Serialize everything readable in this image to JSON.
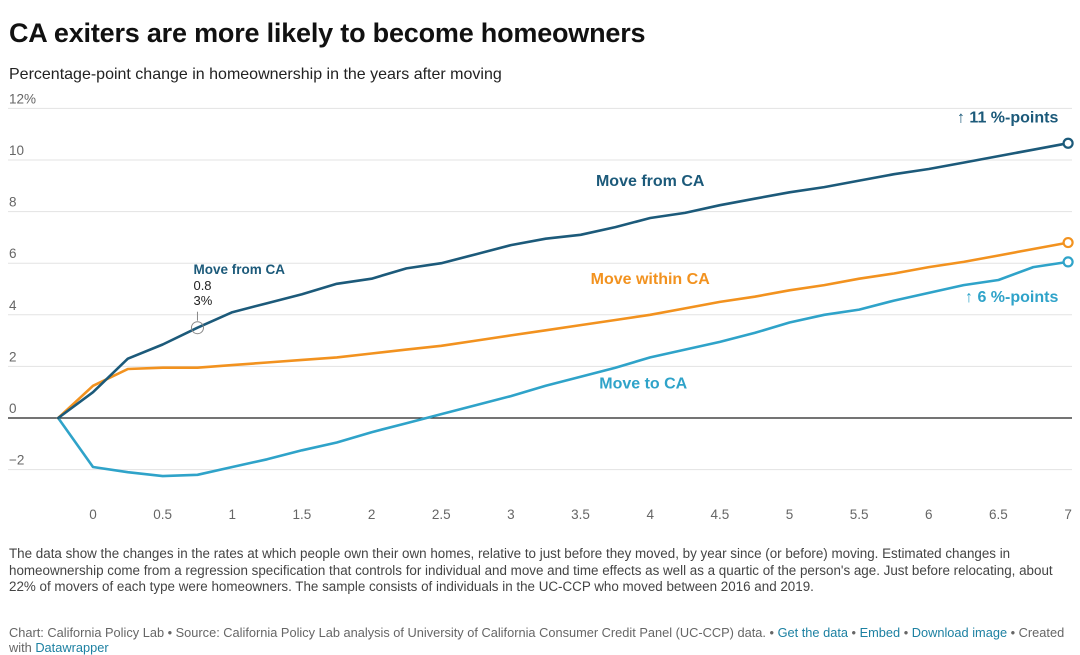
{
  "title": "CA exiters are more likely to become homeowners",
  "subtitle": "Percentage-point change in homeownership in the years after moving",
  "notes": "The data show the changes in the rates at which people own their own homes, relative to just before they moved, by year since (or before) moving. Estimated changes in homeownership come from a regression specification that controls for individual and move and time effects as well as a quartic of the person's age. Just before relocating, about 22% of movers of each type were homeowners. The sample consists of individuals in the UC-CCP who moved between 2016 and 2019.",
  "footer": {
    "source": "Chart: California Policy Lab • Source: California Policy Lab analysis of University of California Consumer Credit Panel (UC-CCP) data. • ",
    "get_data": "Get the data",
    "sep1": " • ",
    "embed": "Embed",
    "sep2": " • ",
    "download": "Download image",
    "sep3": " • Created with ",
    "datawrapper": "Datawrapper"
  },
  "chart_data": {
    "type": "line",
    "x_ticks": [
      "0",
      "0.5",
      "1",
      "1.5",
      "2",
      "2.5",
      "3",
      "3.5",
      "4",
      "4.5",
      "5",
      "5.5",
      "6",
      "6.5",
      "7"
    ],
    "y_ticks": [
      "12%",
      "10",
      "8",
      "6",
      "4",
      "2",
      "0",
      "−2"
    ],
    "xlim": [
      -0.25,
      7
    ],
    "ylim": [
      -2.5,
      12
    ],
    "colors": {
      "from": "#1c5a7a",
      "within": "#f2921f",
      "to": "#2fa3c9"
    },
    "series": [
      {
        "name": "Move from CA",
        "x": [
          -0.25,
          0,
          0.25,
          0.5,
          0.75,
          1,
          1.25,
          1.5,
          1.75,
          2,
          2.25,
          2.5,
          2.75,
          3,
          3.25,
          3.5,
          3.75,
          4,
          4.25,
          4.5,
          4.75,
          5,
          5.25,
          5.5,
          5.75,
          6,
          6.25,
          6.5,
          6.75,
          7
        ],
        "values": [
          0,
          1.0,
          2.3,
          2.85,
          3.5,
          4.1,
          4.45,
          4.8,
          5.2,
          5.4,
          5.8,
          6.0,
          6.35,
          6.7,
          6.95,
          7.1,
          7.4,
          7.75,
          7.95,
          8.25,
          8.5,
          8.75,
          8.95,
          9.2,
          9.45,
          9.65,
          9.9,
          10.15,
          10.4,
          10.65
        ]
      },
      {
        "name": "Move within CA",
        "x": [
          -0.25,
          0,
          0.25,
          0.5,
          0.75,
          1,
          1.25,
          1.5,
          1.75,
          2,
          2.25,
          2.5,
          2.75,
          3,
          3.25,
          3.5,
          3.75,
          4,
          4.25,
          4.5,
          4.75,
          5,
          5.25,
          5.5,
          5.75,
          6,
          6.25,
          6.5,
          6.75,
          7
        ],
        "values": [
          0,
          1.25,
          1.9,
          1.95,
          1.95,
          2.05,
          2.15,
          2.25,
          2.35,
          2.5,
          2.65,
          2.8,
          3.0,
          3.2,
          3.4,
          3.6,
          3.8,
          4.0,
          4.25,
          4.5,
          4.7,
          4.95,
          5.15,
          5.4,
          5.6,
          5.85,
          6.05,
          6.3,
          6.55,
          6.8
        ]
      },
      {
        "name": "Move to CA",
        "x": [
          -0.25,
          0,
          0.25,
          0.5,
          0.75,
          1,
          1.25,
          1.5,
          1.75,
          2,
          2.25,
          2.5,
          2.75,
          3,
          3.25,
          3.5,
          3.75,
          4,
          4.25,
          4.5,
          4.75,
          5,
          5.25,
          5.5,
          5.75,
          6,
          6.25,
          6.5,
          6.75,
          7
        ],
        "values": [
          0,
          -1.9,
          -2.1,
          -2.25,
          -2.2,
          -1.9,
          -1.6,
          -1.25,
          -0.95,
          -0.55,
          -0.2,
          0.15,
          0.5,
          0.85,
          1.25,
          1.6,
          1.95,
          2.35,
          2.65,
          2.95,
          3.3,
          3.7,
          4.0,
          4.2,
          4.55,
          4.85,
          5.15,
          5.35,
          5.85,
          6.05
        ]
      }
    ],
    "series_labels": [
      {
        "series": 0,
        "text": "Move from CA",
        "x": 4.0,
        "y": 9.0
      },
      {
        "series": 1,
        "text": "Move within CA",
        "x": 4.0,
        "y": 5.2
      },
      {
        "series": 2,
        "text": "Move to CA",
        "x": 3.95,
        "y": 1.15
      }
    ],
    "end_labels": [
      {
        "series": 0,
        "text": "↑ 11 %-points",
        "x": 6.93,
        "y": 11.45
      },
      {
        "series": 2,
        "text": "↑ 6 %-points",
        "x": 6.93,
        "y": 4.5
      }
    ],
    "tooltip": {
      "series": 0,
      "x": 0.75,
      "title": "Move from CA",
      "line1": "0.8",
      "line2": "3%"
    }
  }
}
